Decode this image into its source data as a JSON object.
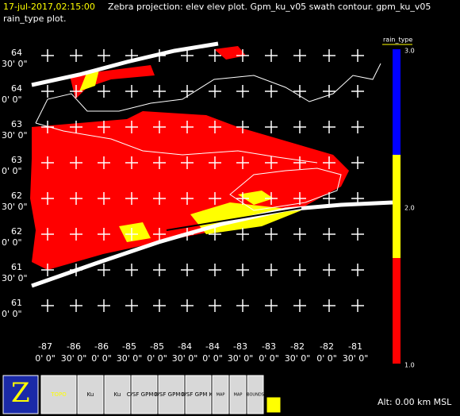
{
  "header": {
    "timestamp": "17-jul-2017,02:15:00",
    "description": "Zebra projection: elev elev  plot.  Gpm_ku_v05 swath contour.  gpm_ku_v05",
    "description_cont": "rain_type  plot."
  },
  "lat_labels": [
    [
      "64",
      "30' 0\""
    ],
    [
      "64",
      "0' 0\""
    ],
    [
      "63",
      "30' 0\""
    ],
    [
      "63",
      "0' 0\""
    ],
    [
      "62",
      "30' 0\""
    ],
    [
      "62",
      "0' 0\""
    ],
    [
      "61",
      "30' 0\""
    ],
    [
      "61",
      "0' 0\""
    ]
  ],
  "lon_labels": [
    [
      "-87",
      "0' 0\""
    ],
    [
      "-86",
      "30' 0\""
    ],
    [
      "-86",
      "0' 0\""
    ],
    [
      "-85",
      "30' 0\""
    ],
    [
      "-85",
      "0' 0\""
    ],
    [
      "-84",
      "30' 0\""
    ],
    [
      "-84",
      "0' 0\""
    ],
    [
      "-83",
      "30' 0\""
    ],
    [
      "-83",
      "0' 0\""
    ],
    [
      "-82",
      "30' 0\""
    ],
    [
      "-82",
      "0' 0\""
    ],
    [
      "-81",
      "30' 0\""
    ]
  ],
  "colorbar": {
    "title": "rain_type",
    "labels": [
      "3.0",
      "2.0",
      "1.0"
    ]
  },
  "icons": [
    "TOPO",
    "Ku",
    "Ku",
    "C/SF GPM Ku",
    "C/SF GPM Ku",
    "C/SF GPM Ku",
    "MAP",
    "MAP",
    "BOUNDS"
  ],
  "altitude": "Alt: 0.00 km MSL"
}
